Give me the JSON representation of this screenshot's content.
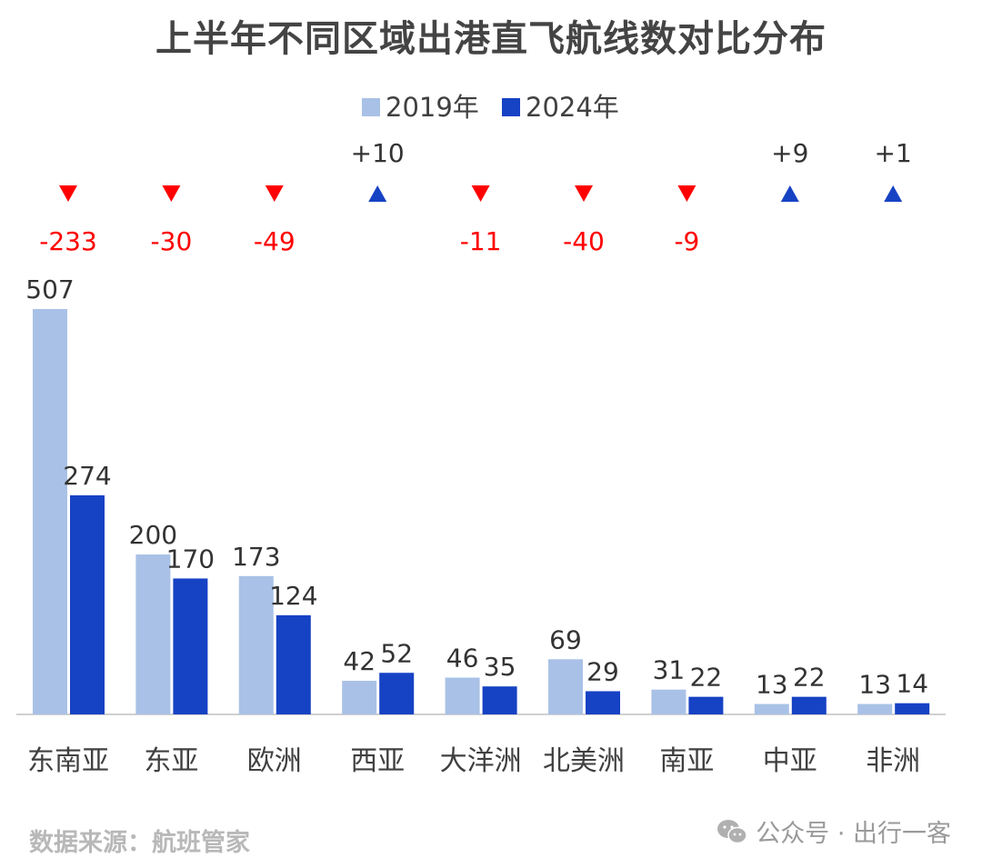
{
  "chart_data": {
    "type": "bar",
    "title": "上半年不同区域出港直飞航线数对比分布",
    "categories": [
      "东南亚",
      "东亚",
      "欧洲",
      "西亚",
      "大洋洲",
      "北美洲",
      "南亚",
      "中亚",
      "非洲"
    ],
    "series": [
      {
        "name": "2019年",
        "color": "#a9c1e6",
        "values": [
          507,
          200,
          173,
          42,
          46,
          69,
          31,
          13,
          13
        ]
      },
      {
        "name": "2024年",
        "color": "#1642c4",
        "values": [
          274,
          170,
          124,
          52,
          35,
          29,
          22,
          22,
          14
        ]
      }
    ],
    "changes": [
      {
        "text": "-233",
        "direction": "down"
      },
      {
        "text": "-30",
        "direction": "down"
      },
      {
        "text": "-49",
        "direction": "down"
      },
      {
        "text": "+10",
        "direction": "up"
      },
      {
        "text": "-11",
        "direction": "down"
      },
      {
        "text": "-40",
        "direction": "down"
      },
      {
        "text": "-9",
        "direction": "down"
      },
      {
        "text": "+9",
        "direction": "up"
      },
      {
        "text": "+1",
        "direction": "up"
      }
    ],
    "change_colors": {
      "down": "#ff0000",
      "up": "#1642c4",
      "up_text": "#333333"
    },
    "ylim": [
      0,
      507
    ],
    "legend_position": "top-center",
    "grid": false
  },
  "source": "数据来源：航班管家",
  "watermark": "公众号 · 出行一客"
}
